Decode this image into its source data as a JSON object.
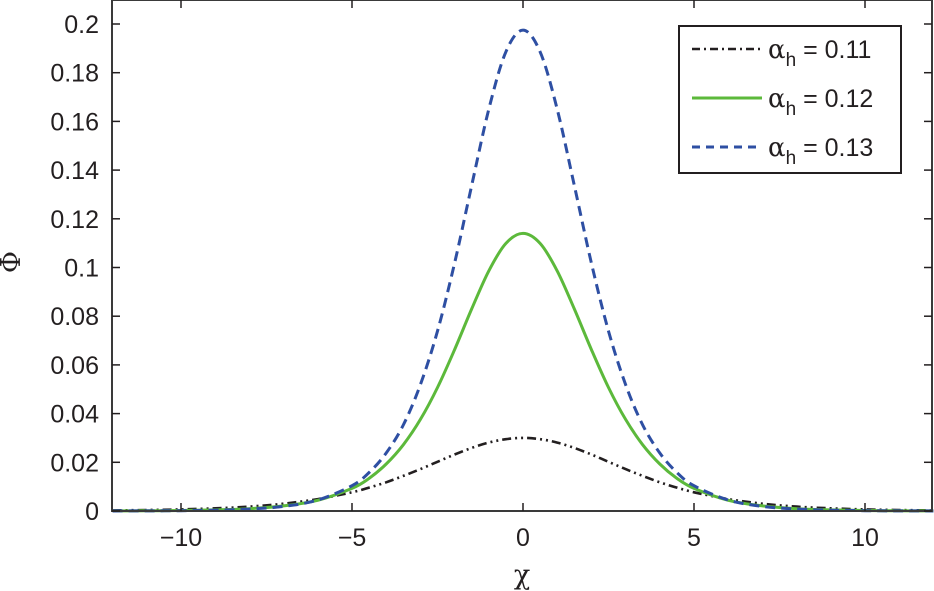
{
  "chart_data": {
    "type": "line",
    "title": "",
    "xlabel": "χ",
    "ylabel": "Φ",
    "xlim": [
      -12,
      12
    ],
    "ylim": [
      0,
      0.21
    ],
    "grid": false,
    "legend_position": "upper right",
    "x_ticks": [
      -10,
      -5,
      0,
      5,
      10
    ],
    "x_tick_labels": [
      "−10",
      "−5",
      "0",
      "5",
      "10"
    ],
    "y_ticks": [
      0,
      0.02,
      0.04,
      0.06,
      0.08,
      0.1,
      0.12,
      0.14,
      0.16,
      0.18,
      0.2
    ],
    "y_tick_labels": [
      "0",
      "0.02",
      "0.04",
      "0.06",
      "0.08",
      "0.1",
      "0.12",
      "0.14",
      "0.16",
      "0.18",
      "0.2"
    ],
    "x": [
      -12,
      -11,
      -10,
      -9,
      -8,
      -7,
      -6,
      -5,
      -4.5,
      -4,
      -3.5,
      -3,
      -2.5,
      -2,
      -1.5,
      -1,
      -0.5,
      0,
      0.5,
      1,
      1.5,
      2,
      2.5,
      3,
      3.5,
      4,
      4.5,
      5,
      6,
      7,
      8,
      9,
      10,
      11,
      12
    ],
    "series": [
      {
        "name": "α_h = 0.11",
        "legend_symbol": "α",
        "legend_sub": "h",
        "legend_value": " = 0.11",
        "color": "#231f20",
        "style": "dash-dot-dot",
        "values": [
          0.00023,
          0.0004,
          0.00065,
          0.0011,
          0.0018,
          0.003,
          0.0049,
          0.0077,
          0.0096,
          0.0118,
          0.0144,
          0.0172,
          0.0202,
          0.0232,
          0.0259,
          0.0281,
          0.0295,
          0.03,
          0.0295,
          0.0281,
          0.0259,
          0.0232,
          0.0202,
          0.0172,
          0.0144,
          0.0118,
          0.0096,
          0.0077,
          0.0049,
          0.003,
          0.0018,
          0.0011,
          0.00065,
          0.0004,
          0.00023
        ]
      },
      {
        "name": "α_h = 0.12",
        "legend_symbol": "α",
        "legend_sub": "h",
        "legend_value": " = 0.12",
        "color": "#5cb93b",
        "style": "solid",
        "values": [
          4e-05,
          0.0001,
          0.0002,
          0.00045,
          0.00096,
          0.0021,
          0.0044,
          0.0093,
          0.0134,
          0.0193,
          0.0272,
          0.0376,
          0.0507,
          0.0663,
          0.083,
          0.0986,
          0.1099,
          0.114,
          0.1099,
          0.0986,
          0.083,
          0.0663,
          0.0507,
          0.0376,
          0.0272,
          0.0193,
          0.0134,
          0.0093,
          0.0044,
          0.0021,
          0.00096,
          0.00045,
          0.0002,
          0.0001,
          4e-05
        ]
      },
      {
        "name": "α_h = 0.13",
        "legend_symbol": "α",
        "legend_sub": "h",
        "legend_value": " = 0.13",
        "color": "#2e4fa3",
        "style": "dashed",
        "values": [
          2e-05,
          6e-05,
          0.00014,
          0.00034,
          0.0008,
          0.0019,
          0.0045,
          0.0104,
          0.0158,
          0.0238,
          0.0353,
          0.0519,
          0.0739,
          0.1018,
          0.1337,
          0.165,
          0.1886,
          0.1975,
          0.1886,
          0.165,
          0.1337,
          0.1018,
          0.0739,
          0.0519,
          0.0353,
          0.0238,
          0.0158,
          0.0104,
          0.0045,
          0.0019,
          0.0008,
          0.00034,
          0.00014,
          6e-05,
          2e-05
        ]
      }
    ]
  }
}
